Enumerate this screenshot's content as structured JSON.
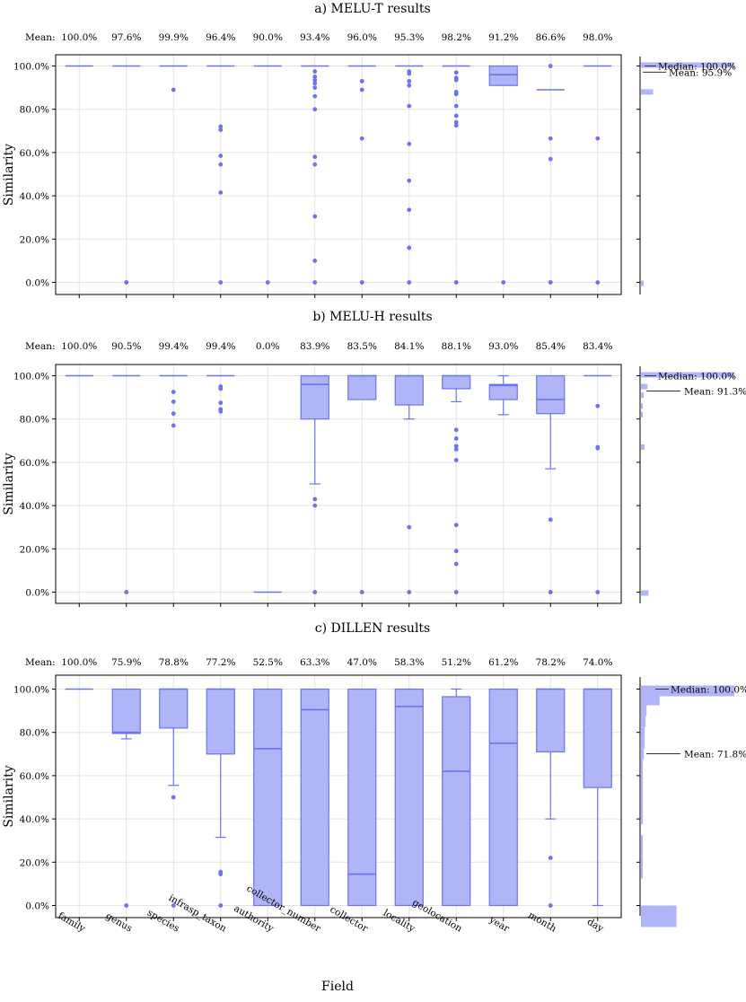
{
  "chart_data": {
    "type": "box",
    "shared": {
      "categories": [
        "family",
        "genus",
        "species",
        "infrasp_taxon",
        "authority",
        "collector_number",
        "collector",
        "locality",
        "geolocation",
        "year",
        "month",
        "day"
      ],
      "xlabel": "Field",
      "ylabel": "Similarity",
      "mean_prefix": "Mean:",
      "ylim": [
        0,
        100
      ],
      "yticks": [
        "0.0%",
        "20.0%",
        "40.0%",
        "60.0%",
        "80.0%",
        "100.0%"
      ],
      "grid": true,
      "color": "#6b74f0",
      "fill": "#b0b5f7"
    },
    "panels": [
      {
        "title": "a) MELU-T results",
        "means": [
          "100.0%",
          "97.6%",
          "99.9%",
          "96.4%",
          "90.0%",
          "93.4%",
          "96.0%",
          "95.3%",
          "98.2%",
          "91.2%",
          "86.6%",
          "98.0%"
        ],
        "median_label": "Median: 100.0%",
        "mean_label": "Mean: 95.9%",
        "boxes": [
          {
            "q1": 100,
            "med": 100,
            "q3": 100,
            "wlo": 100,
            "whi": 100,
            "out": []
          },
          {
            "q1": 100,
            "med": 100,
            "q3": 100,
            "wlo": 100,
            "whi": 100,
            "out": [
              0
            ]
          },
          {
            "q1": 100,
            "med": 100,
            "q3": 100,
            "wlo": 100,
            "whi": 100,
            "out": [
              89
            ]
          },
          {
            "q1": 100,
            "med": 100,
            "q3": 100,
            "wlo": 100,
            "whi": 100,
            "out": [
              72,
              70.5,
              58.5,
              54.5,
              41.5,
              0
            ]
          },
          {
            "q1": 100,
            "med": 100,
            "q3": 100,
            "wlo": 100,
            "whi": 100,
            "out": [
              0
            ]
          },
          {
            "q1": 100,
            "med": 100,
            "q3": 100,
            "wlo": 100,
            "whi": 100,
            "out": [
              97.5,
              95,
              93.5,
              92,
              90,
              86,
              80,
              58,
              54.5,
              30.5,
              10,
              0
            ]
          },
          {
            "q1": 100,
            "med": 100,
            "q3": 100,
            "wlo": 100,
            "whi": 100,
            "out": [
              93,
              89,
              66.5,
              0
            ]
          },
          {
            "q1": 100,
            "med": 100,
            "q3": 100,
            "wlo": 100,
            "whi": 100,
            "out": [
              97.5,
              96.5,
              93,
              91,
              81.5,
              64,
              47,
              33.5,
              16,
              0
            ]
          },
          {
            "q1": 100,
            "med": 100,
            "q3": 100,
            "wlo": 100,
            "whi": 100,
            "out": [
              97,
              94.5,
              93.5,
              88,
              87,
              81.5,
              77,
              74,
              72.5,
              0
            ]
          },
          {
            "q1": 91,
            "med": 96,
            "q3": 100,
            "wlo": 91,
            "whi": 100,
            "out": [
              0
            ]
          },
          {
            "q1": 89,
            "med": 89,
            "q3": 89,
            "wlo": 89,
            "whi": 89,
            "out": [
              100,
              66.5,
              57,
              0
            ]
          },
          {
            "q1": 100,
            "med": 100,
            "q3": 100,
            "wlo": 100,
            "whi": 100,
            "out": [
              66.5,
              0
            ]
          }
        ],
        "hist": [
          {
            "y": 100,
            "frac": 1.0
          },
          {
            "y": 88,
            "frac": 0.13
          },
          {
            "y": 0,
            "frac": 0.03
          }
        ]
      },
      {
        "title": "b) MELU-H results",
        "means": [
          "100.0%",
          "90.5%",
          "99.4%",
          "99.4%",
          "0.0%",
          "83.9%",
          "83.5%",
          "84.1%",
          "88.1%",
          "93.0%",
          "85.4%",
          "83.4%"
        ],
        "median_label": "Median: 100.0%",
        "mean_label": "Mean: 91.3%",
        "boxes": [
          {
            "q1": 100,
            "med": 100,
            "q3": 100,
            "wlo": 100,
            "whi": 100,
            "out": []
          },
          {
            "q1": 100,
            "med": 100,
            "q3": 100,
            "wlo": 100,
            "whi": 100,
            "out": [
              0
            ]
          },
          {
            "q1": 100,
            "med": 100,
            "q3": 100,
            "wlo": 100,
            "whi": 100,
            "out": [
              92.5,
              88,
              82.5,
              77
            ]
          },
          {
            "q1": 100,
            "med": 100,
            "q3": 100,
            "wlo": 100,
            "whi": 100,
            "out": [
              95,
              94,
              87.5,
              84.5,
              83.5
            ]
          },
          {
            "q1": 0,
            "med": 0,
            "q3": 0,
            "wlo": 0,
            "whi": 0,
            "out": []
          },
          {
            "q1": 80,
            "med": 96,
            "q3": 100,
            "wlo": 50,
            "whi": 100,
            "out": [
              43,
              40,
              0
            ]
          },
          {
            "q1": 89,
            "med": 100,
            "q3": 100,
            "wlo": 89,
            "whi": 100,
            "out": [
              0
            ]
          },
          {
            "q1": 86.5,
            "med": 100,
            "q3": 100,
            "wlo": 80,
            "whi": 100,
            "out": [
              30,
              0
            ]
          },
          {
            "q1": 94,
            "med": 100,
            "q3": 100,
            "wlo": 88,
            "whi": 100,
            "out": [
              75,
              71,
              67.5,
              66,
              61,
              31,
              19,
              13,
              0
            ]
          },
          {
            "q1": 89,
            "med": 95.5,
            "q3": 96,
            "wlo": 82,
            "whi": 100,
            "out": []
          },
          {
            "q1": 82.5,
            "med": 89,
            "q3": 100,
            "wlo": 57,
            "whi": 100,
            "out": [
              33.5,
              0
            ]
          },
          {
            "q1": 100,
            "med": 100,
            "q3": 100,
            "wlo": 100,
            "whi": 100,
            "out": [
              86,
              67,
              66.5,
              0
            ]
          }
        ],
        "hist": [
          {
            "y": 100,
            "frac": 1.0
          },
          {
            "y": 95,
            "frac": 0.07
          },
          {
            "y": 91,
            "frac": 0.03
          },
          {
            "y": 86,
            "frac": 0.02
          },
          {
            "y": 82,
            "frac": 0.02
          },
          {
            "y": 67,
            "frac": 0.04
          },
          {
            "y": 0,
            "frac": 0.08
          }
        ]
      },
      {
        "title": "c) DILLEN results",
        "means": [
          "100.0%",
          "75.9%",
          "78.8%",
          "77.2%",
          "52.5%",
          "63.3%",
          "47.0%",
          "58.3%",
          "51.2%",
          "61.2%",
          "78.2%",
          "74.0%"
        ],
        "median_label": "Median: 100.0%",
        "mean_label": "Mean: 71.8%",
        "boxes": [
          {
            "q1": 100,
            "med": 100,
            "q3": 100,
            "wlo": 100,
            "whi": 100,
            "out": []
          },
          {
            "q1": 79.5,
            "med": 80,
            "q3": 100,
            "wlo": 77,
            "whi": 100,
            "out": [
              0
            ]
          },
          {
            "q1": 82,
            "med": 100,
            "q3": 100,
            "wlo": 55.5,
            "whi": 100,
            "out": [
              50,
              0
            ]
          },
          {
            "q1": 70,
            "med": 100,
            "q3": 100,
            "wlo": 31.5,
            "whi": 100,
            "out": [
              15.5,
              14.5,
              0
            ]
          },
          {
            "q1": 0,
            "med": 72.5,
            "q3": 100,
            "wlo": 0,
            "whi": 100,
            "out": []
          },
          {
            "q1": 0,
            "med": 90.5,
            "q3": 100,
            "wlo": 0,
            "whi": 100,
            "out": []
          },
          {
            "q1": 0,
            "med": 14.5,
            "q3": 100,
            "wlo": 0,
            "whi": 100,
            "out": []
          },
          {
            "q1": 0,
            "med": 92,
            "q3": 100,
            "wlo": 0,
            "whi": 100,
            "out": []
          },
          {
            "q1": 0,
            "med": 62,
            "q3": 96.5,
            "wlo": 0,
            "whi": 100,
            "out": []
          },
          {
            "q1": 0,
            "med": 75,
            "q3": 100,
            "wlo": 0,
            "whi": 100,
            "out": []
          },
          {
            "q1": 71,
            "med": 100,
            "q3": 100,
            "wlo": 40,
            "whi": 100,
            "out": [
              22,
              0
            ]
          },
          {
            "q1": 54.5,
            "med": 100,
            "q3": 100,
            "wlo": 0,
            "whi": 100,
            "out": []
          }
        ],
        "hist": [
          {
            "y": 100,
            "frac": 1.0
          },
          {
            "y": 95,
            "frac": 0.2
          },
          {
            "y": 90,
            "frac": 0.06
          },
          {
            "y": 85,
            "frac": 0.05
          },
          {
            "y": 80,
            "frac": 0.04
          },
          {
            "y": 75,
            "frac": 0.04
          },
          {
            "y": 70,
            "frac": 0.03
          },
          {
            "y": 65,
            "frac": 0.02
          },
          {
            "y": 60,
            "frac": 0.02
          },
          {
            "y": 55,
            "frac": 0.02
          },
          {
            "y": 50,
            "frac": 0.02
          },
          {
            "y": 45,
            "frac": 0.02
          },
          {
            "y": 40,
            "frac": 0.02
          },
          {
            "y": 30,
            "frac": 0.02
          },
          {
            "y": 25,
            "frac": 0.02
          },
          {
            "y": 20,
            "frac": 0.02
          },
          {
            "y": 15,
            "frac": 0.02
          },
          {
            "y": 0,
            "frac": 0.38
          }
        ]
      }
    ]
  }
}
